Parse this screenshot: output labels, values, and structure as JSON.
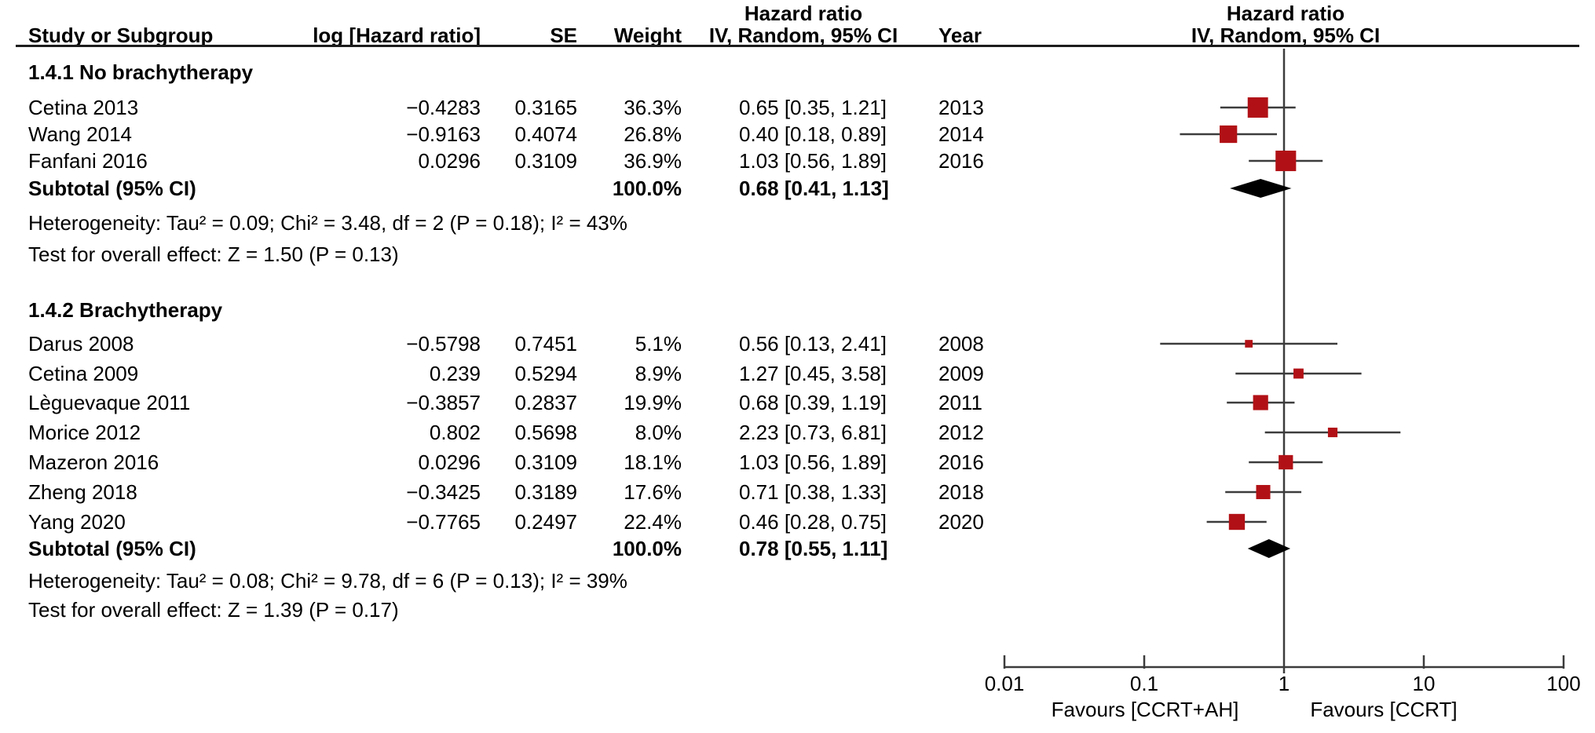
{
  "header": {
    "study": "Study or Subgroup",
    "log_hr": "log [Hazard ratio]",
    "se": "SE",
    "weight": "Weight",
    "hr_line1": "Hazard ratio",
    "hr_line2": "IV, Random, 95% CI",
    "year": "Year",
    "plot_hr_line1": "Hazard ratio",
    "plot_hr_line2": "IV, Random, 95% CI"
  },
  "axis": {
    "ticks": [
      "0.01",
      "0.1",
      "1",
      "10",
      "100"
    ],
    "favours_left": "Favours [CCRT+AH]",
    "favours_right": "Favours [CCRT]"
  },
  "colors": {
    "marker": "#b11116",
    "diamond": "#000000",
    "line": "#3c3c3c"
  },
  "chart_data": {
    "type": "forest_plot",
    "effect_measure": "Hazard ratio",
    "model": "IV, Random, 95% CI",
    "x_scale": "log10",
    "x_range": [
      0.01,
      100
    ],
    "x_ticks": [
      0.01,
      0.1,
      1,
      10,
      100
    ],
    "null_line": 1,
    "groups": [
      {
        "title": "1.4.1 No brachytherapy",
        "studies": [
          {
            "name": "Cetina 2013",
            "log_hr": "−0.4283",
            "se": "0.3165",
            "weight_text": "36.3%",
            "ci_text": "0.65 [0.35, 1.21]",
            "year_text": "2013",
            "hr": 0.65,
            "ci_low": 0.35,
            "ci_high": 1.21,
            "weight": 36.3,
            "year": 2013
          },
          {
            "name": "Wang 2014",
            "log_hr": "−0.9163",
            "se": "0.4074",
            "weight_text": "26.8%",
            "ci_text": "0.40 [0.18, 0.89]",
            "year_text": "2014",
            "hr": 0.4,
            "ci_low": 0.18,
            "ci_high": 0.89,
            "weight": 26.8,
            "year": 2014
          },
          {
            "name": "Fanfani 2016",
            "log_hr": "0.0296",
            "se": "0.3109",
            "weight_text": "36.9%",
            "ci_text": "1.03 [0.56, 1.89]",
            "year_text": "2016",
            "hr": 1.03,
            "ci_low": 0.56,
            "ci_high": 1.89,
            "weight": 36.9,
            "year": 2016
          }
        ],
        "subtotal": {
          "label": "Subtotal (95% CI)",
          "weight_text": "100.0%",
          "ci_text": "0.68 [0.41, 1.13]",
          "hr": 0.68,
          "ci_low": 0.41,
          "ci_high": 1.13
        },
        "heterogeneity_text": "Heterogeneity: Tau² = 0.09; Chi² = 3.48, df = 2 (P = 0.18); I² = 43%",
        "overall_effect_text": "Test for overall effect: Z = 1.50 (P = 0.13)",
        "stats": {
          "tau2": 0.09,
          "chi2": 3.48,
          "df": 2,
          "p_heterogeneity": 0.18,
          "i2_percent": 43,
          "z": 1.5,
          "p_overall": 0.13
        }
      },
      {
        "title": "1.4.2 Brachytherapy",
        "studies": [
          {
            "name": "Darus 2008",
            "log_hr": "−0.5798",
            "se": "0.7451",
            "weight_text": "5.1%",
            "ci_text": "0.56 [0.13, 2.41]",
            "year_text": "2008",
            "hr": 0.56,
            "ci_low": 0.13,
            "ci_high": 2.41,
            "weight": 5.1,
            "year": 2008
          },
          {
            "name": "Cetina 2009",
            "log_hr": "0.239",
            "se": "0.5294",
            "weight_text": "8.9%",
            "ci_text": "1.27 [0.45, 3.58]",
            "year_text": "2009",
            "hr": 1.27,
            "ci_low": 0.45,
            "ci_high": 3.58,
            "weight": 8.9,
            "year": 2009
          },
          {
            "name": "Lèguevaque 2011",
            "log_hr": "−0.3857",
            "se": "0.2837",
            "weight_text": "19.9%",
            "ci_text": "0.68 [0.39, 1.19]",
            "year_text": "2011",
            "hr": 0.68,
            "ci_low": 0.39,
            "ci_high": 1.19,
            "weight": 19.9,
            "year": 2011
          },
          {
            "name": "Morice 2012",
            "log_hr": "0.802",
            "se": "0.5698",
            "weight_text": "8.0%",
            "ci_text": "2.23 [0.73, 6.81]",
            "year_text": "2012",
            "hr": 2.23,
            "ci_low": 0.73,
            "ci_high": 6.81,
            "weight": 8.0,
            "year": 2012
          },
          {
            "name": "Mazeron 2016",
            "log_hr": "0.0296",
            "se": "0.3109",
            "weight_text": "18.1%",
            "ci_text": "1.03 [0.56, 1.89]",
            "year_text": "2016",
            "hr": 1.03,
            "ci_low": 0.56,
            "ci_high": 1.89,
            "weight": 18.1,
            "year": 2016
          },
          {
            "name": "Zheng 2018",
            "log_hr": "−0.3425",
            "se": "0.3189",
            "weight_text": "17.6%",
            "ci_text": "0.71 [0.38, 1.33]",
            "year_text": "2018",
            "hr": 0.71,
            "ci_low": 0.38,
            "ci_high": 1.33,
            "weight": 17.6,
            "year": 2018
          },
          {
            "name": "Yang 2020",
            "log_hr": "−0.7765",
            "se": "0.2497",
            "weight_text": "22.4%",
            "ci_text": "0.46 [0.28, 0.75]",
            "year_text": "2020",
            "hr": 0.46,
            "ci_low": 0.28,
            "ci_high": 0.75,
            "weight": 22.4,
            "year": 2020
          }
        ],
        "subtotal": {
          "label": "Subtotal (95% CI)",
          "weight_text": "100.0%",
          "ci_text": "0.78 [0.55, 1.11]",
          "hr": 0.78,
          "ci_low": 0.55,
          "ci_high": 1.11
        },
        "heterogeneity_text": "Heterogeneity: Tau² = 0.08; Chi² = 9.78, df = 6 (P = 0.13); I² = 39%",
        "overall_effect_text": "Test for overall effect: Z = 1.39 (P = 0.17)",
        "stats": {
          "tau2": 0.08,
          "chi2": 9.78,
          "df": 6,
          "p_heterogeneity": 0.13,
          "i2_percent": 39,
          "z": 1.39,
          "p_overall": 0.17
        }
      }
    ]
  }
}
